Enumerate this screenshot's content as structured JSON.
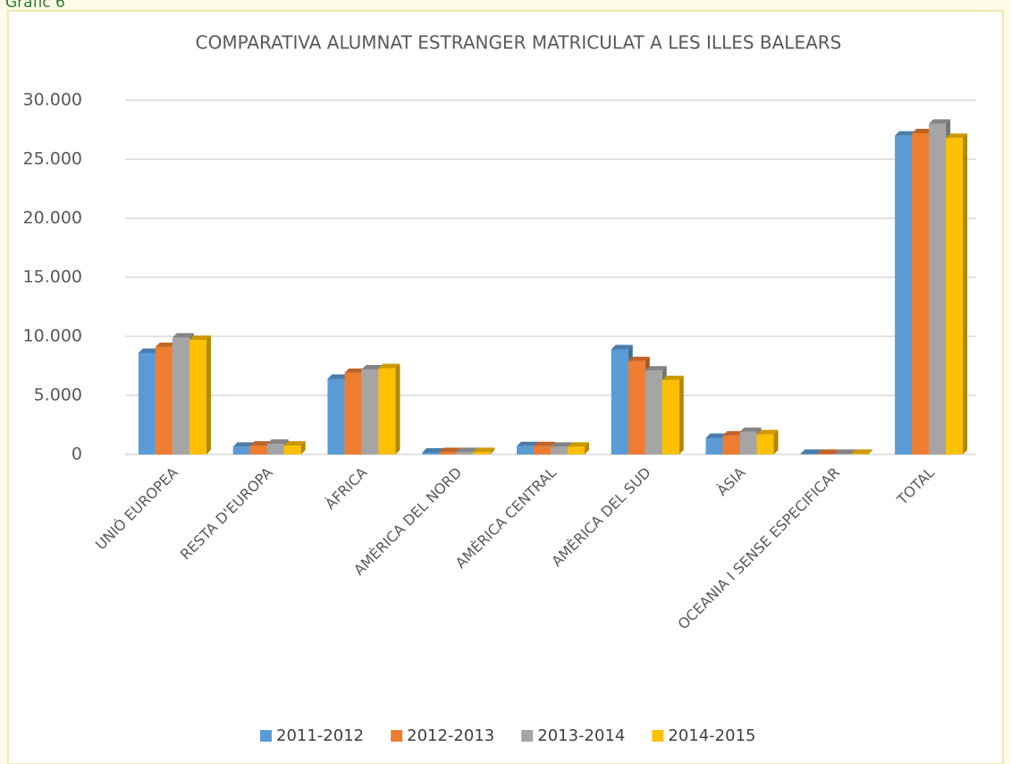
{
  "heading": "Gràfic 6",
  "chart_data": {
    "type": "bar3d",
    "title": "COMPARATIVA ALUMNAT ESTRANGER MATRICULAT A LES ILLES BALEARS",
    "categories": [
      "UNIÓ EUROPEA",
      "RESTA D'EUROPA",
      "ÀFRICA",
      "AMÈRICA DEL NORD",
      "AMÈRICA CENTRAL",
      "AMÈRICA DEL SUD",
      "ÀSIA",
      "OCEANIA I SENSE ESPECIFICAR",
      "TOTAL"
    ],
    "series": [
      {
        "name": "2011-2012",
        "color": "#5b9bd5",
        "values": [
          8600,
          650,
          6400,
          150,
          700,
          8900,
          1400,
          50,
          27000
        ]
      },
      {
        "name": "2012-2013",
        "color": "#ed7d31",
        "values": [
          9100,
          750,
          6900,
          200,
          700,
          7900,
          1600,
          50,
          27200
        ]
      },
      {
        "name": "2013-2014",
        "color": "#a5a5a5",
        "values": [
          9900,
          900,
          7200,
          200,
          650,
          7100,
          1900,
          50,
          28000
        ]
      },
      {
        "name": "2014-2015",
        "color": "#ffc000",
        "values": [
          9700,
          750,
          7300,
          200,
          650,
          6300,
          1700,
          50,
          26800
        ]
      }
    ],
    "ylim": [
      0,
      30000
    ],
    "yticks": [
      0,
      {
        "value": 5000,
        "label": "5.000"
      },
      {
        "value": 10000,
        "label": "10.000"
      },
      {
        "value": 15000,
        "label": "15.000"
      },
      {
        "value": 20000,
        "label": "20.000"
      },
      {
        "value": 25000,
        "label": "25.000"
      },
      {
        "value": 30000,
        "label": "30.000"
      }
    ],
    "grid": true,
    "legend": "bottom"
  }
}
